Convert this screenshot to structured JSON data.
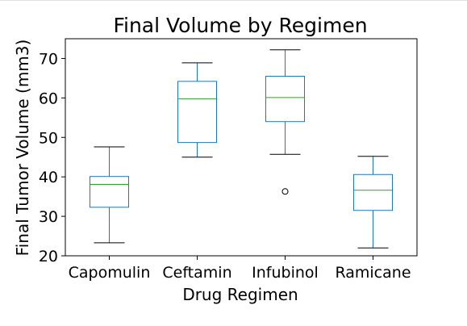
{
  "chart_data": {
    "type": "box",
    "title": "Final Volume by Regimen",
    "xlabel": "Drug Regimen",
    "ylabel": "Final Tumor Volume (mm3)",
    "ylim": [
      20,
      75
    ],
    "yticks": [
      "20",
      "30",
      "40",
      "50",
      "60",
      "70"
    ],
    "grid": false,
    "categories": [
      "Capomulin",
      "Ceftamin",
      "Infubinol",
      "Ramicane"
    ],
    "boxes": [
      {
        "category": "Capomulin",
        "whisker_low": 23.3,
        "q1": 32.3,
        "median": 38.1,
        "q3": 40.1,
        "whisker_high": 47.6,
        "outliers": []
      },
      {
        "category": "Ceftamin",
        "whisker_low": 45.0,
        "q1": 48.7,
        "median": 59.8,
        "q3": 64.2,
        "whisker_high": 68.9,
        "outliers": []
      },
      {
        "category": "Infubinol",
        "whisker_low": 45.7,
        "q1": 54.0,
        "median": 60.1,
        "q3": 65.5,
        "whisker_high": 72.2,
        "outliers": [
          36.3
        ]
      },
      {
        "category": "Ramicane",
        "whisker_low": 22.0,
        "q1": 31.5,
        "median": 36.6,
        "q3": 40.6,
        "whisker_high": 45.2,
        "outliers": []
      }
    ],
    "colors": {
      "box": "#1f77b4",
      "median": "#2ca02c",
      "outlier": "#000000"
    }
  }
}
